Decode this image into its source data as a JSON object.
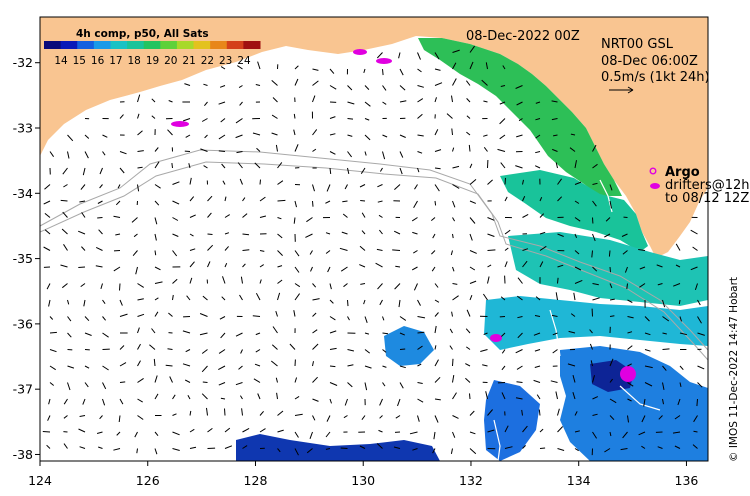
{
  "map": {
    "date_label": "08-Dec-2022 00Z",
    "product": {
      "line1": "NRT00 GSL",
      "line2": "08-Dec 06:00Z",
      "line3": "0.5m/s (1kt 24h)"
    },
    "argo_label": "Argo",
    "drifters": {
      "line1": "drifters@12h",
      "line2": "to 08/12 12Z"
    },
    "credit": "© IMOS 11-Dec-2022 14:47 Hobart",
    "x_axis": {
      "ticks": [
        "124",
        "126",
        "128",
        "130",
        "132",
        "134",
        "136"
      ],
      "range": [
        124,
        136.4
      ]
    },
    "y_axis": {
      "ticks": [
        "-32",
        "-33",
        "-34",
        "-35",
        "-36",
        "-37",
        "-38"
      ],
      "range": [
        -38.1,
        -31.3
      ]
    }
  },
  "colorbar": {
    "title": "4h comp, p50, All Sats",
    "labels": [
      "14",
      "15",
      "16",
      "17",
      "18",
      "19",
      "20",
      "21",
      "22",
      "23",
      "24"
    ],
    "colors": [
      "#0a0a7a",
      "#0b1ab8",
      "#1560e0",
      "#1b9ae8",
      "#19c2c4",
      "#19c49a",
      "#23c460",
      "#5ed13a",
      "#a8d92a",
      "#e3c21e",
      "#e8861a",
      "#d4401a",
      "#a01010"
    ]
  },
  "colors": {
    "land": "#f9c591",
    "argo": "#e000e0",
    "isobath": "#a9a9a9",
    "front": "#ffffff"
  }
}
